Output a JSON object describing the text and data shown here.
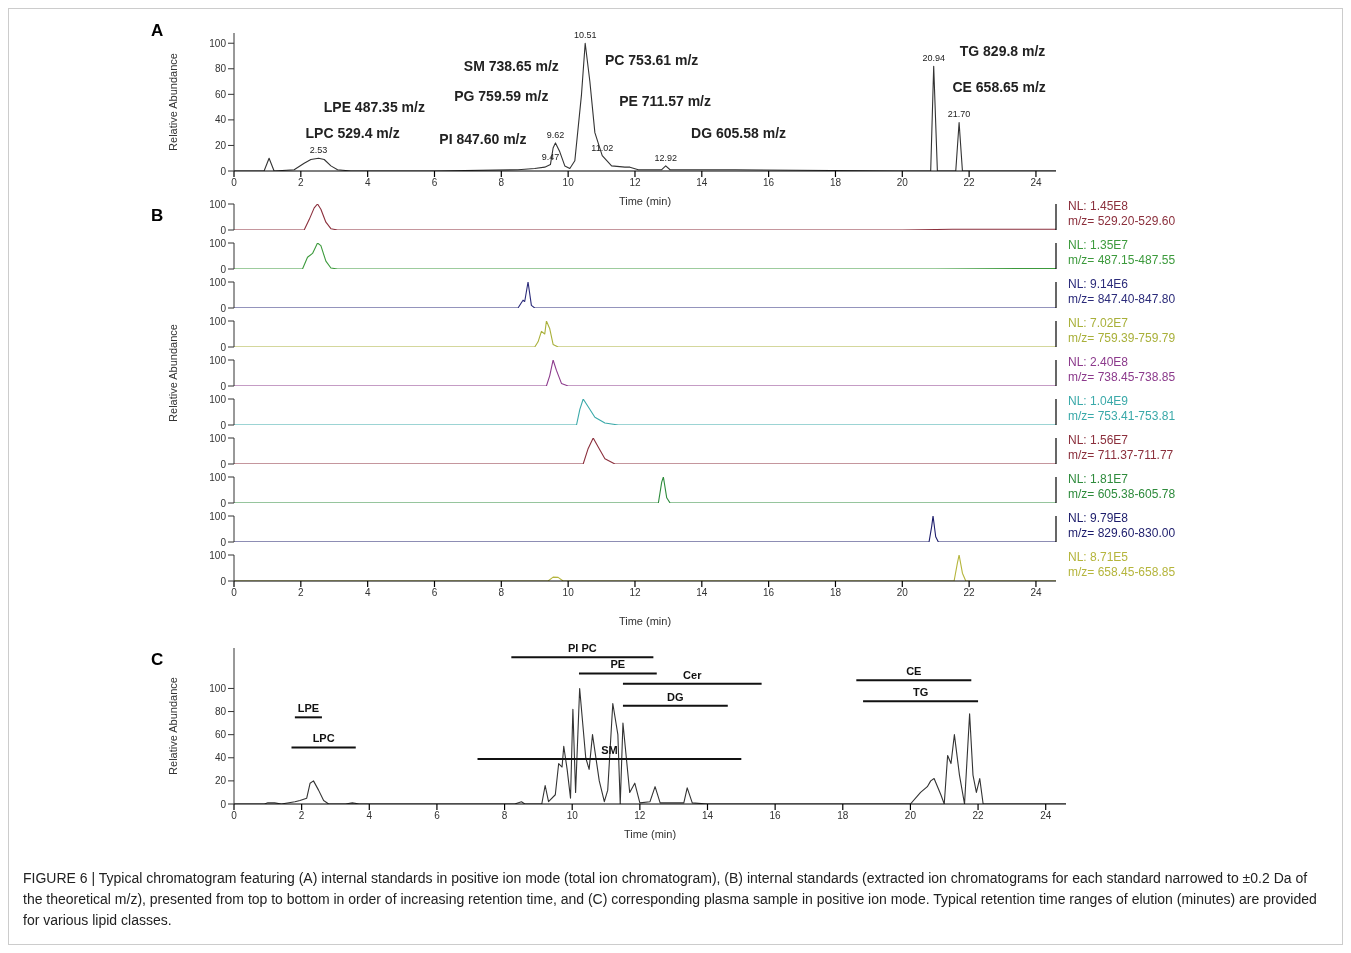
{
  "chart_data": [
    {
      "type": "line",
      "title": "A",
      "xlabel": "Time (min)",
      "ylabel": "Relative Abundance",
      "xlim": [
        0,
        24.6
      ],
      "xticks": [
        0,
        2,
        4,
        6,
        8,
        10,
        12,
        14,
        16,
        18,
        20,
        22,
        24
      ],
      "ylim": [
        0,
        108
      ],
      "yticks": [
        0,
        20,
        40,
        60,
        80,
        100
      ],
      "series": [
        {
          "color": "#333333",
          "x": [
            0,
            0.9,
            1.05,
            1.2,
            1.8,
            2.1,
            2.3,
            2.53,
            2.7,
            2.9,
            3.1,
            3.5,
            6,
            8.5,
            9.0,
            9.3,
            9.47,
            9.55,
            9.62,
            9.75,
            9.9,
            10.05,
            10.2,
            10.4,
            10.51,
            10.65,
            10.8,
            11.02,
            11.3,
            11.7,
            11.85,
            12.1,
            12.8,
            12.92,
            13.05,
            14,
            14.8,
            15,
            20,
            20.85,
            20.94,
            21.05,
            21.6,
            21.7,
            21.8,
            22.2,
            24.6
          ],
          "values": [
            0,
            0,
            10,
            0,
            1,
            6,
            9,
            10,
            9,
            4,
            1,
            0,
            0,
            1,
            2,
            3,
            5,
            18,
            22,
            15,
            4,
            2,
            8,
            60,
            100,
            70,
            30,
            12,
            4,
            3,
            3,
            1,
            1,
            4,
            1,
            1,
            1,
            1,
            0,
            0,
            82,
            0,
            0,
            38,
            0,
            0,
            0
          ]
        }
      ],
      "annotations": [
        {
          "text": "2.53",
          "x": 2.53,
          "y": 10
        },
        {
          "text": "9.47",
          "x": 9.47,
          "y": 5
        },
        {
          "text": "9.62",
          "x": 9.62,
          "y": 22
        },
        {
          "text": "10.51",
          "x": 10.51,
          "y": 100
        },
        {
          "text": "11.02",
          "x": 11.02,
          "y": 12
        },
        {
          "text": "12.92",
          "x": 12.92,
          "y": 4
        },
        {
          "text": "20.94",
          "x": 20.94,
          "y": 82
        },
        {
          "text": "21.70",
          "x": 21.7,
          "y": 38
        },
        "LPC 529.4 m/z",
        "LPE 487.35 m/z",
        "PI 847.60 m/z",
        "PG 759.59 m/z",
        "SM 738.65 m/z",
        "PC 753.61 m/z",
        "PE 711.57 m/z",
        "DG 605.58 m/z",
        "TG 829.8 m/z",
        "CE 658.65 m/z"
      ]
    },
    {
      "type": "line",
      "title": "B",
      "xlim": [
        0,
        24.6
      ],
      "ylim": [
        0,
        100
      ],
      "yticks": [
        0,
        100
      ],
      "tick_labels": "y",
      "series": [
        {
          "color": "#8b2f3c",
          "x": [
            0,
            2.1,
            2.25,
            2.4,
            2.5,
            2.6,
            2.75,
            2.9,
            3.1,
            20,
            21.5,
            24.6
          ],
          "values": [
            0,
            0,
            40,
            85,
            100,
            80,
            30,
            5,
            0,
            0,
            3,
            3
          ]
        }
      ],
      "annotations": [
        "NL: 1.45E8",
        "m/z= 529.20-529.60"
      ]
    },
    {
      "type": "line",
      "xlim": [
        0,
        24.6
      ],
      "ylim": [
        0,
        100
      ],
      "yticks": [
        0,
        100
      ],
      "tick_labels": "y",
      "series": [
        {
          "color": "#3c9a3c",
          "x": [
            0,
            2.05,
            2.2,
            2.35,
            2.5,
            2.6,
            2.75,
            2.9,
            3.1,
            21,
            24.6
          ],
          "values": [
            0,
            0,
            45,
            60,
            100,
            90,
            30,
            4,
            0,
            0,
            2
          ]
        }
      ],
      "annotations": [
        "NL: 1.35E7",
        "m/z= 487.15-487.55"
      ]
    },
    {
      "type": "line",
      "xlim": [
        0,
        24.6
      ],
      "ylim": [
        0,
        100
      ],
      "yticks": [
        0,
        100
      ],
      "tick_labels": "y",
      "series": [
        {
          "color": "#2b2b7a",
          "x": [
            0,
            8.5,
            8.6,
            8.65,
            8.7,
            8.8,
            8.9,
            9.0,
            24.6
          ],
          "values": [
            0,
            0,
            20,
            30,
            25,
            100,
            10,
            0,
            0
          ]
        }
      ],
      "annotations": [
        "NL: 9.14E6",
        "m/z= 847.40-847.80"
      ]
    },
    {
      "type": "line",
      "xlim": [
        0,
        24.6
      ],
      "ylim": [
        0,
        100
      ],
      "yticks": [
        0,
        100
      ],
      "tick_labels": "y",
      "series": [
        {
          "color": "#a9b03a",
          "x": [
            0,
            9.0,
            9.1,
            9.2,
            9.3,
            9.35,
            9.45,
            9.55,
            9.7,
            24.6
          ],
          "values": [
            0,
            0,
            20,
            60,
            50,
            100,
            70,
            10,
            0,
            0
          ]
        }
      ],
      "annotations": [
        "NL: 7.02E7",
        "m/z= 759.39-759.79"
      ]
    },
    {
      "type": "line",
      "ylabel": "Relative Abundance",
      "xlim": [
        0,
        24.6
      ],
      "ylim": [
        0,
        100
      ],
      "yticks": [
        0,
        100
      ],
      "tick_labels": "y",
      "series": [
        {
          "color": "#8c3a8c",
          "x": [
            0,
            9.35,
            9.45,
            9.55,
            9.65,
            9.8,
            10,
            24.6
          ],
          "values": [
            0,
            0,
            40,
            100,
            60,
            10,
            0,
            0
          ]
        }
      ],
      "annotations": [
        "NL: 2.40E8",
        "m/z= 738.45-738.85"
      ]
    },
    {
      "type": "line",
      "xlim": [
        0,
        24.6
      ],
      "ylim": [
        0,
        100
      ],
      "yticks": [
        0,
        100
      ],
      "tick_labels": "y",
      "series": [
        {
          "color": "#3aa9a9",
          "x": [
            0,
            10.25,
            10.35,
            10.45,
            10.6,
            10.8,
            11.1,
            11.5,
            24.6
          ],
          "values": [
            0,
            0,
            60,
            100,
            70,
            30,
            8,
            0,
            0
          ]
        }
      ],
      "annotations": [
        "NL: 1.04E9",
        "m/z= 753.41-753.81"
      ]
    },
    {
      "type": "line",
      "xlim": [
        0,
        24.6
      ],
      "ylim": [
        0,
        100
      ],
      "yticks": [
        0,
        100
      ],
      "tick_labels": "y",
      "series": [
        {
          "color": "#8b2f3c",
          "x": [
            0,
            10.45,
            10.6,
            10.75,
            10.9,
            11.1,
            11.4,
            24.6
          ],
          "values": [
            0,
            0,
            60,
            100,
            65,
            20,
            0,
            0
          ]
        }
      ],
      "annotations": [
        "NL: 1.56E7",
        "m/z= 711.37-711.77"
      ]
    },
    {
      "type": "line",
      "xlim": [
        0,
        24.6
      ],
      "ylim": [
        0,
        100
      ],
      "yticks": [
        0,
        100
      ],
      "tick_labels": "y",
      "series": [
        {
          "color": "#2e8b3c",
          "x": [
            0,
            12.7,
            12.8,
            12.85,
            12.95,
            13.05,
            24.6
          ],
          "values": [
            0,
            0,
            80,
            100,
            20,
            0,
            0
          ]
        }
      ],
      "annotations": [
        "NL: 1.81E7",
        "m/z= 605.38-605.78"
      ]
    },
    {
      "type": "line",
      "xlim": [
        0,
        24.6
      ],
      "ylim": [
        0,
        100
      ],
      "yticks": [
        0,
        100
      ],
      "tick_labels": "y",
      "series": [
        {
          "color": "#1c1c6b",
          "x": [
            0,
            20.8,
            20.88,
            20.92,
            21.0,
            21.08,
            24.6
          ],
          "values": [
            0,
            0,
            60,
            100,
            20,
            0,
            0
          ]
        }
      ],
      "annotations": [
        "NL: 9.79E8",
        "m/z= 829.60-830.00"
      ]
    },
    {
      "type": "line",
      "xlabel": "Time (min)",
      "xlim": [
        0,
        24.6
      ],
      "xticks": [
        0,
        2,
        4,
        6,
        8,
        10,
        12,
        14,
        16,
        18,
        20,
        22,
        24
      ],
      "ylim": [
        0,
        100
      ],
      "yticks": [
        0,
        100
      ],
      "series": [
        {
          "color": "#b5b53c",
          "x": [
            0,
            9.4,
            9.55,
            9.7,
            9.85,
            21.55,
            21.65,
            21.7,
            21.8,
            21.9,
            24.6
          ],
          "values": [
            0,
            0,
            15,
            14,
            0,
            0,
            70,
            100,
            30,
            0,
            0
          ]
        }
      ],
      "annotations": [
        "NL: 8.71E5",
        "m/z= 658.45-658.85"
      ]
    },
    {
      "type": "line",
      "title": "C",
      "xlabel": "Time (min)",
      "ylabel": "Relative Abundance",
      "xlim": [
        0,
        24.6
      ],
      "xticks": [
        0,
        2,
        4,
        6,
        8,
        10,
        12,
        14,
        16,
        18,
        20,
        22,
        24
      ],
      "ylim": [
        0,
        135
      ],
      "yticks": [
        0,
        20,
        40,
        60,
        80,
        100
      ],
      "series": [
        {
          "color": "#333333",
          "x": [
            0,
            0.9,
            1.0,
            1.2,
            1.4,
            1.8,
            1.95,
            2.15,
            2.25,
            2.35,
            2.5,
            2.65,
            2.8,
            3.3,
            3.5,
            3.7,
            8.3,
            8.5,
            8.6,
            9.1,
            9.2,
            9.3,
            9.5,
            9.6,
            9.7,
            9.75,
            9.85,
            9.95,
            10.02,
            10.1,
            10.22,
            10.4,
            10.5,
            10.6,
            10.8,
            10.95,
            11.05,
            11.2,
            11.35,
            11.42,
            11.5,
            11.7,
            11.85,
            12.0,
            12.3,
            12.45,
            12.6,
            13.3,
            13.4,
            13.55,
            14,
            20,
            20.3,
            20.5,
            20.6,
            20.7,
            20.9,
            21.0,
            21.1,
            21.2,
            21.3,
            21.45,
            21.6,
            21.75,
            21.85,
            21.95,
            22.05,
            22.15,
            24.6
          ],
          "values": [
            0,
            0,
            1,
            1,
            0,
            2,
            3,
            5,
            18,
            20,
            12,
            3,
            0,
            0,
            1,
            0,
            0,
            2,
            0,
            0,
            16,
            2,
            8,
            35,
            32,
            50,
            30,
            5,
            82,
            10,
            100,
            40,
            30,
            60,
            20,
            2,
            12,
            87,
            60,
            0,
            70,
            10,
            18,
            1,
            2,
            15,
            1,
            1,
            14,
            1,
            0,
            0,
            10,
            15,
            20,
            22,
            8,
            0,
            42,
            35,
            60,
            25,
            0,
            78,
            25,
            10,
            22,
            0,
            0
          ]
        },
        {
          "name": "LPE",
          "color": "#111111",
          "x": [
            1.8,
            2.6
          ],
          "values": [
            75,
            75
          ]
        },
        {
          "name": "LPC",
          "color": "#111111",
          "x": [
            1.7,
            3.6
          ],
          "values": [
            49,
            49
          ]
        },
        {
          "name": "PI PC",
          "color": "#111111",
          "x": [
            8.2,
            12.4
          ],
          "values": [
            127,
            127
          ]
        },
        {
          "name": "PE",
          "color": "#111111",
          "x": [
            10.2,
            12.5
          ],
          "values": [
            113,
            113
          ]
        },
        {
          "name": "Cer",
          "color": "#111111",
          "x": [
            11.5,
            15.6
          ],
          "values": [
            104,
            104
          ]
        },
        {
          "name": "DG",
          "color": "#111111",
          "x": [
            11.5,
            14.6
          ],
          "values": [
            85,
            85
          ]
        },
        {
          "name": "CE",
          "color": "#111111",
          "x": [
            18.4,
            21.8
          ],
          "values": [
            107,
            107
          ]
        },
        {
          "name": "TG",
          "color": "#111111",
          "x": [
            18.6,
            22.0
          ],
          "values": [
            89,
            89
          ]
        },
        {
          "name": "SM",
          "color": "#111111",
          "x": [
            7.2,
            15.0
          ],
          "values": [
            39,
            39
          ]
        }
      ],
      "annotations": [
        "FIGURE 6 | Typical chromatogram featuring (A) internal standards in positive ion mode (total ion chromatogram), (B) internal standards (extracted ion chromatograms for each standard narrowed to ±0.2 Da of the theoretical m/z), presented from top to bottom in order of increasing retention time, and (C) corresponding plasma sample in positive ion mode. Typical retention time ranges of elution (minutes) are provided for various lipid classes."
      ]
    }
  ]
}
